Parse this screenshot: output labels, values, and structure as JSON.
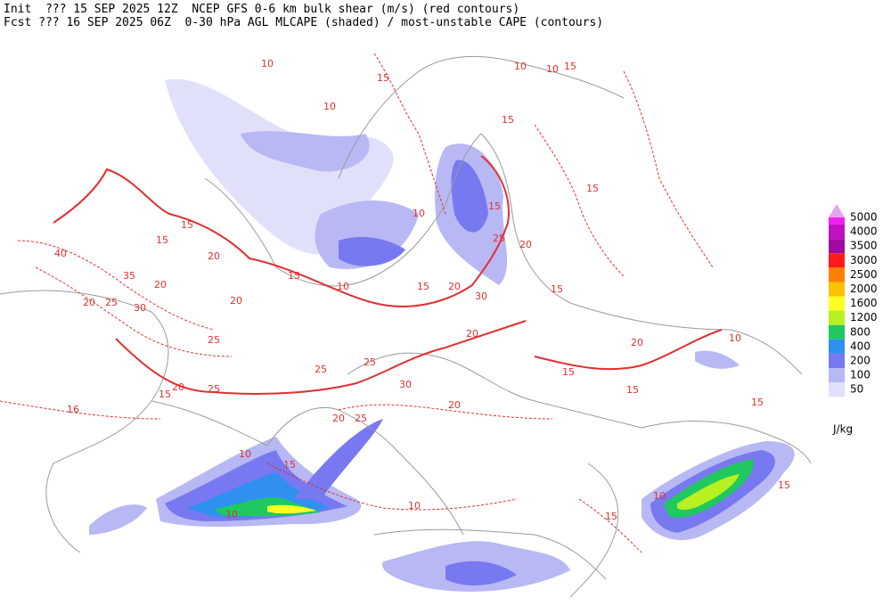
{
  "header": {
    "line1": "Init  ??? 15 SEP 2025 12Z  NCEP GFS 0-6 km bulk shear (m/s) (red contours)",
    "line2": "Fcst ??? 16 SEP 2025 06Z  0-30 hPa AGL MLCAPE (shaded) / most-unstable CAPE (contours)"
  },
  "legend": {
    "unit": "J/kg",
    "levels": [
      {
        "label": "5000",
        "color": "#f020f0"
      },
      {
        "label": "4000",
        "color": "#c010c0"
      },
      {
        "label": "3500",
        "color": "#a00aa0"
      },
      {
        "label": "3000",
        "color": "#ff1a1a"
      },
      {
        "label": "2500",
        "color": "#ff8000"
      },
      {
        "label": "2000",
        "color": "#ffc000"
      },
      {
        "label": "1600",
        "color": "#ffff20"
      },
      {
        "label": "1200",
        "color": "#b8f020"
      },
      {
        "label": "800",
        "color": "#20c860"
      },
      {
        "label": "400",
        "color": "#3090f0"
      },
      {
        "label": "200",
        "color": "#7878f0"
      },
      {
        "label": "100",
        "color": "#b8b8f4"
      },
      {
        "label": "50",
        "color": "#e0e0fa"
      }
    ]
  },
  "contour_labels": [
    "10",
    "15",
    "10",
    "10",
    "15",
    "15",
    "10",
    "15",
    "10",
    "15",
    "25",
    "20",
    "15",
    "15",
    "15",
    "20",
    "40",
    "35",
    "20",
    "20",
    "25",
    "30",
    "20",
    "25",
    "15",
    "10",
    "15",
    "20",
    "30",
    "20",
    "25",
    "25",
    "25",
    "20",
    "15",
    "16",
    "30",
    "20",
    "25",
    "20",
    "15",
    "15",
    "20",
    "10",
    "15",
    "10",
    "15",
    "10",
    "10",
    "15",
    "10",
    "15"
  ]
}
